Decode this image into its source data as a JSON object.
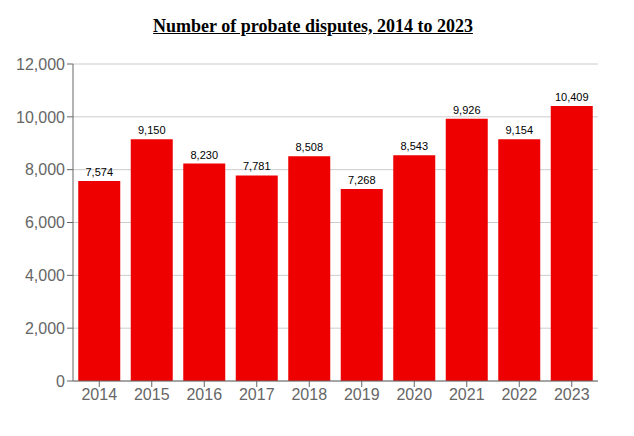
{
  "chart_data": {
    "type": "bar",
    "title": "Number of probate disputes, 2014 to 2023",
    "categories": [
      "2014",
      "2015",
      "2016",
      "2017",
      "2018",
      "2019",
      "2020",
      "2021",
      "2022",
      "2023"
    ],
    "values": [
      7574,
      9150,
      8230,
      7781,
      8508,
      7268,
      8543,
      9926,
      9154,
      10409
    ],
    "value_labels": [
      "7,574",
      "9,150",
      "8,230",
      "7,781",
      "8,508",
      "7,268",
      "8,543",
      "9,926",
      "9,154",
      "10,409"
    ],
    "data_labels": true,
    "color": "#ee0000",
    "ylim": [
      0,
      12000
    ],
    "yticks": [
      0,
      {
        "value": 2000,
        "label": "2,000"
      },
      {
        "value": 4000,
        "label": "4,000"
      },
      {
        "value": 6000,
        "label": "6,000"
      },
      {
        "value": 8000,
        "label": "8,000"
      },
      {
        "value": 10000,
        "label": "10,000"
      },
      {
        "value": 12000,
        "label": "12,000"
      }
    ],
    "grid": true
  }
}
